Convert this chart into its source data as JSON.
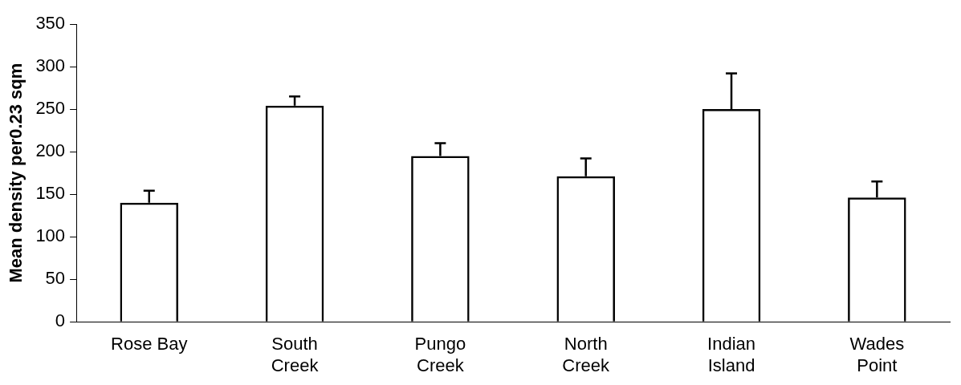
{
  "chart_data": {
    "type": "bar",
    "ylabel": "Mean density per0.23 sqm",
    "categories": [
      "Rose Bay",
      "South\nCreek",
      "Pungo\nCreek",
      "North\nCreek",
      "Indian\nIsland",
      "Wades\nPoint"
    ],
    "values": [
      140,
      254,
      195,
      171,
      250,
      146
    ],
    "errors": [
      [
        140,
        154
      ],
      [
        254,
        265
      ],
      [
        195,
        210
      ],
      [
        171,
        192
      ],
      [
        250,
        292
      ],
      [
        146,
        165
      ]
    ],
    "color": "#000000",
    "ylim": [
      0,
      350
    ],
    "yticks": [
      0,
      50,
      100,
      150,
      200,
      250,
      300,
      350
    ],
    "grid": false,
    "legend": false
  }
}
